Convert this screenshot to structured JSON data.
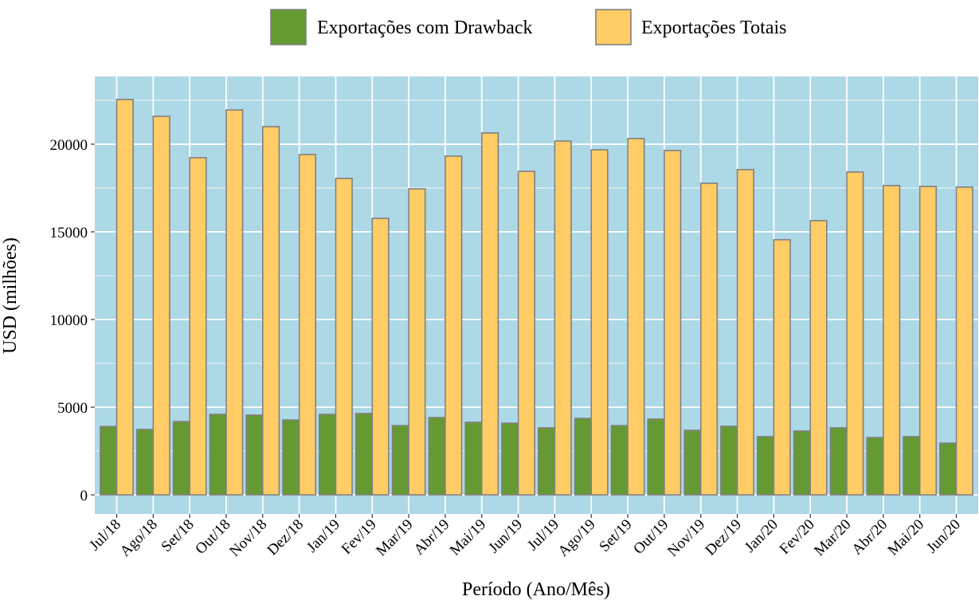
{
  "chart_data": {
    "type": "bar",
    "x_label": "Período (Ano/Mês)",
    "y_label": "USD (milhões)",
    "categories": [
      "Jul/18",
      "Ago/18",
      "Set/18",
      "Out/18",
      "Nov/18",
      "Dez/18",
      "Jan/19",
      "Fev/19",
      "Mar/19",
      "Abr/19",
      "Mai/19",
      "Jun/19",
      "Jul/19",
      "Ago/19",
      "Set/19",
      "Out/19",
      "Nov/19",
      "Dez/19",
      "Jan/20",
      "Fev/20",
      "Mar/20",
      "Abr/20",
      "Mai/20",
      "Jun/20"
    ],
    "series": [
      {
        "name": "Exportações com Drawback",
        "color": "#659a33",
        "values": [
          3900,
          3730,
          4180,
          4590,
          4550,
          4270,
          4590,
          4640,
          3950,
          4410,
          4140,
          4090,
          3820,
          4360,
          3950,
          4320,
          3680,
          3910,
          3320,
          3640,
          3820,
          3270,
          3320,
          2950
        ]
      },
      {
        "name": "Exportações Totais",
        "color": "#ffcc66",
        "values": [
          22550,
          21590,
          19230,
          21950,
          21000,
          19410,
          18050,
          15770,
          17450,
          19320,
          20640,
          18450,
          20180,
          19680,
          20320,
          19640,
          17770,
          18550,
          14550,
          15640,
          18410,
          17640,
          17590,
          17550
        ]
      }
    ],
    "ylim": [
      -1090,
      23860
    ],
    "yticks": [
      0,
      5000,
      10000,
      15000,
      20000
    ],
    "grid": true,
    "grid_minor": true,
    "background": "#add8e6",
    "bar_outline": "#808080",
    "legend": "top"
  }
}
